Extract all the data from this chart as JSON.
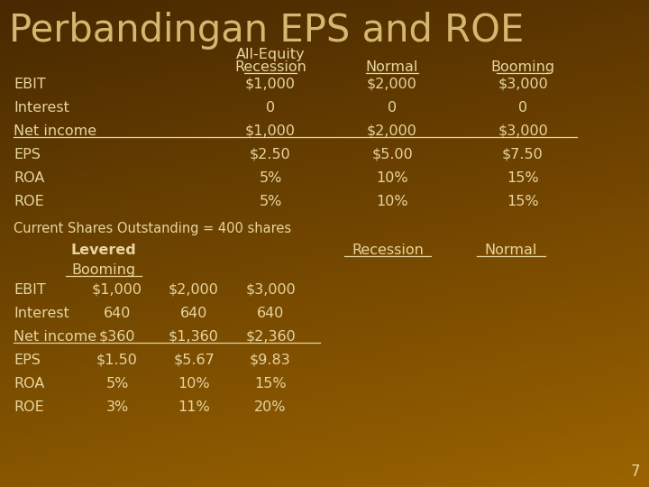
{
  "title": "Perbandingan EPS and ROE",
  "text_color": "#E8D5A0",
  "title_color": "#D4B870",
  "section1_header": "All-Equity",
  "section1_subheaders": [
    "Recession",
    "Normal",
    "Booming"
  ],
  "section1_rows": [
    [
      "EBIT",
      "$1,000",
      "$2,000",
      "$3,000"
    ],
    [
      "Interest",
      "0",
      "0",
      "0"
    ],
    [
      "Net income",
      "$1,000",
      "$2,000",
      "$3,000"
    ],
    [
      "EPS",
      "$2.50",
      "$5.00",
      "$7.50"
    ],
    [
      "ROA",
      "5%",
      "10%",
      "15%"
    ],
    [
      "ROE",
      "5%",
      "10%",
      "15%"
    ]
  ],
  "current_shares": "Current Shares Outstanding = 400 shares",
  "section2_header": "Levered",
  "section2_subheader2": "Booming",
  "section2_col_headers": [
    "Recession",
    "Normal"
  ],
  "section2_rows": [
    [
      "EBIT",
      "$1,000",
      "$2,000",
      "$3,000"
    ],
    [
      "Interest",
      "640",
      "640",
      "640"
    ],
    [
      "Net income",
      "$360",
      "$1,360",
      "$2,360"
    ],
    [
      "EPS",
      "$1.50",
      "$5.67",
      "$9.83"
    ],
    [
      "ROA",
      "5%",
      "10%",
      "15%"
    ],
    [
      "ROE",
      "3%",
      "11%",
      "20%"
    ]
  ],
  "page_number": "7",
  "font_size_title": 30,
  "font_size_header": 11.5,
  "font_size_body": 11.5,
  "font_size_small": 10.5
}
